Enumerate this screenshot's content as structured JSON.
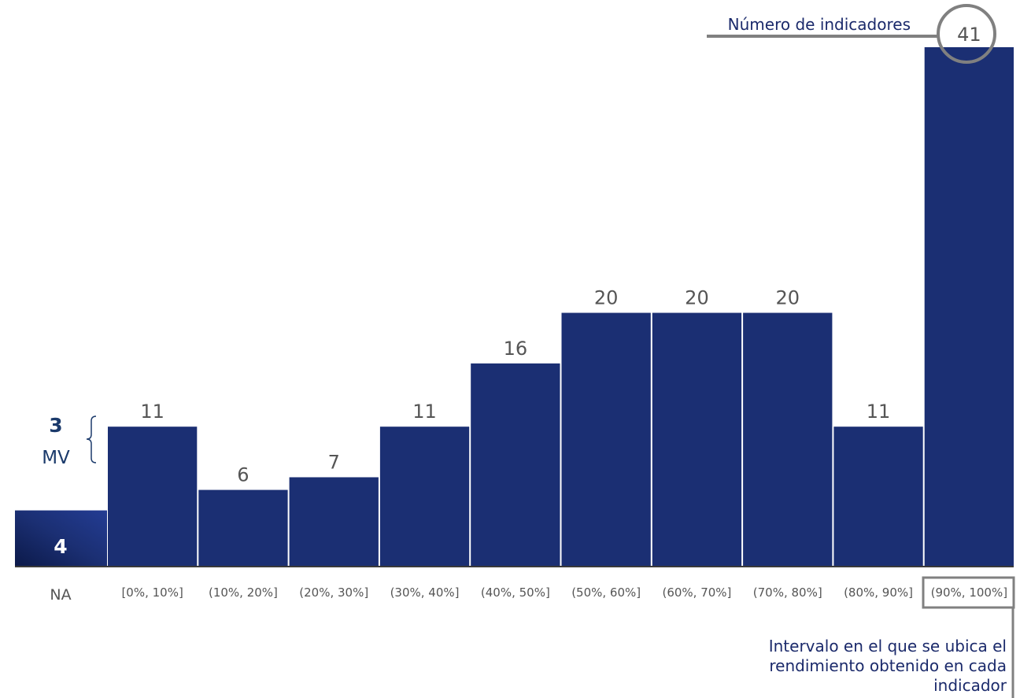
{
  "chart_data": {
    "type": "bar",
    "categories": [
      "[0%, 10%]",
      "(10%, 20%]",
      "(20%, 30%]",
      "(30%, 40%]",
      "(40%, 50%]",
      "(50%, 60%]",
      "(60%, 70%]",
      "(70%, 80%]",
      "(80%, 90%]",
      "(90%, 100%]"
    ],
    "values": [
      11,
      6,
      7,
      11,
      16,
      20,
      20,
      20,
      11,
      41
    ],
    "ylim": [
      0,
      41
    ],
    "na_category": {
      "label": "NA",
      "value": 4
    },
    "mv_annotation": {
      "value": "3",
      "label": "MV"
    },
    "annotations": {
      "top": "Número de indicadores",
      "bottom": [
        "Intervalo en el que se ubica el",
        "rendimiento obtenido en cada",
        "indicador"
      ]
    },
    "colors": {
      "bar": "#1b2f73",
      "na_bar": "#1b2f73",
      "annotation": "#808080",
      "text": "#555555"
    },
    "grid": false
  }
}
